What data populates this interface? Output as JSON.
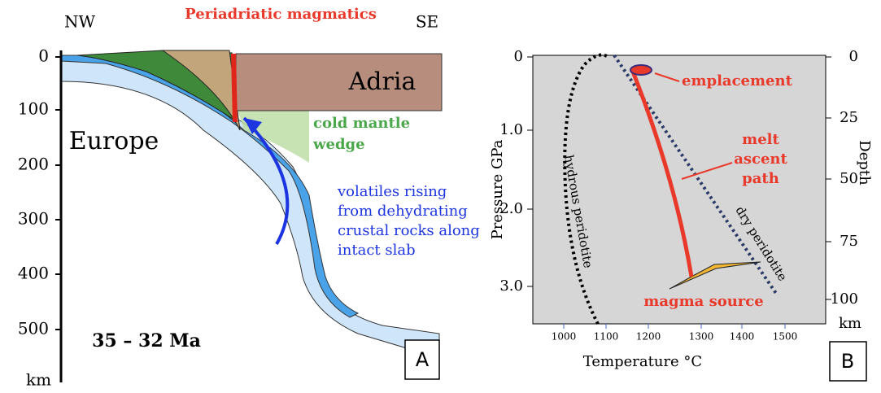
{
  "panel_a": {
    "left_label": "NW",
    "right_label": "SE",
    "top_label": "Periadriatic magmatics",
    "adria": "Adria",
    "europe": "Europe",
    "wedge": [
      "cold mantle",
      "wedge"
    ],
    "volatiles": [
      "volatiles rising",
      "from dehydrating",
      "crustal rocks along",
      "intact slab"
    ],
    "age": "35 – 32 Ma",
    "depth_ticks": [
      "0",
      "100",
      "200",
      "300",
      "400",
      "500"
    ],
    "depth_unit": "km",
    "label": "A"
  },
  "panel_b": {
    "x_title": "Temperature °C",
    "x_ticks": [
      "1000",
      "1100",
      "1200",
      "1300",
      "1400",
      "1500"
    ],
    "y_title": "Pressure  GPa",
    "y_ticks": [
      "0",
      "1.0",
      "2.0",
      "3.0"
    ],
    "y2_title": "Depth",
    "y2_ticks": [
      "0",
      "25",
      "50",
      "75",
      "100"
    ],
    "y2_unit": "km",
    "curves": [
      "hydrous peridotite",
      "dry peridotite"
    ],
    "emplacement": "emplacement",
    "melt_path": [
      "melt",
      "ascent",
      "path"
    ],
    "magma_source": "magma source",
    "label": "B"
  }
}
